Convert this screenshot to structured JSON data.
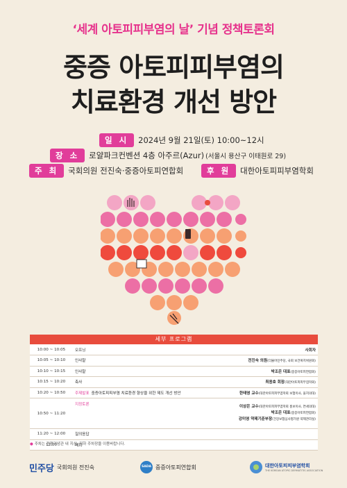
{
  "subtitle": "‘세계 아토피피부염의 날’ 기념 정책토론회",
  "title_line1": "중증 아토피피부염의",
  "title_line2": "치료환경 개선 방안",
  "info": {
    "date_tag": "일 시",
    "date": "2024년 9월 21일(토) 10:00~12시",
    "place_tag": "장 소",
    "place_main": "로얄파크컨벤션 4층 아주르(Azur)",
    "place_sub": "(서울시 용산구 이태원로 29)",
    "host_tag": "주 최",
    "host": "국회의원 전진숙·중증아토피연합회",
    "sponsor_tag": "후 원",
    "sponsor": "대한아토피피부염학회"
  },
  "program": {
    "header": "세부 프로그램",
    "rows": [
      {
        "time": "10:00 ~ 10:05",
        "label": "오프닝",
        "detail": "",
        "right": "사회자",
        "right_sub": ""
      },
      {
        "time": "10:05 ~ 10:10",
        "label": "인사말",
        "detail": "",
        "right": "전진숙 의원",
        "right_sub": "(더불어민주당, 국회 보건복지위원회)"
      },
      {
        "time": "10:10 ~ 10:15",
        "label": "인사말",
        "detail": "",
        "right": "박조은 대표",
        "right_sub": "(중증아토피연합회)"
      },
      {
        "time": "10:15 ~ 10:20",
        "label": "축사",
        "detail": "",
        "right": "최용호 회장",
        "right_sub": "(대한아토피피부염학회)"
      },
      {
        "time": "10:20 ~ 10:50",
        "label": "주제발표",
        "detail": "중증아토피피부염 치료환경 향상을 위한 제도 개선 방안",
        "right": "한태영 교수",
        "right_sub": "(대한아토피피부염학회 보험이사, 을지의대)"
      }
    ],
    "discussion": {
      "time": "10:50 ~ 11:20",
      "label": "지정토론",
      "panel": [
        {
          "name": "이상은 교수",
          "affil": "(대한아토피피부염학회 홍보이사, 연세의대)"
        },
        {
          "name": "박조은 대표",
          "affil": "(중증아토피연합회)"
        },
        {
          "name": "강미영 약제기준부장",
          "affil": "(건강보험심사평가원 약제관리실)"
        }
      ]
    },
    "rows_after": [
      {
        "time": "11:20 ~ 12:00",
        "label": "질의응답"
      },
      {
        "time": "12:00",
        "label": "폐회"
      }
    ]
  },
  "note": "주차는 전쟁기념관 내 지상, 지하 주차장을 이용바랍니다.",
  "footer": {
    "party_logo": "민주당",
    "party_member": "국회의원 전진숙",
    "sada_logo": "SADA",
    "sada_name": "중증아토피연합회",
    "kaaf_name": "대한아토피피부염학회",
    "kaaf_en": "THE KOREAN ATOPIC DERMATITIS ASSOCIATION"
  },
  "colors": {
    "accent": "#e13d9a",
    "table_header": "#e84c3d",
    "background": "#f4ede0"
  }
}
